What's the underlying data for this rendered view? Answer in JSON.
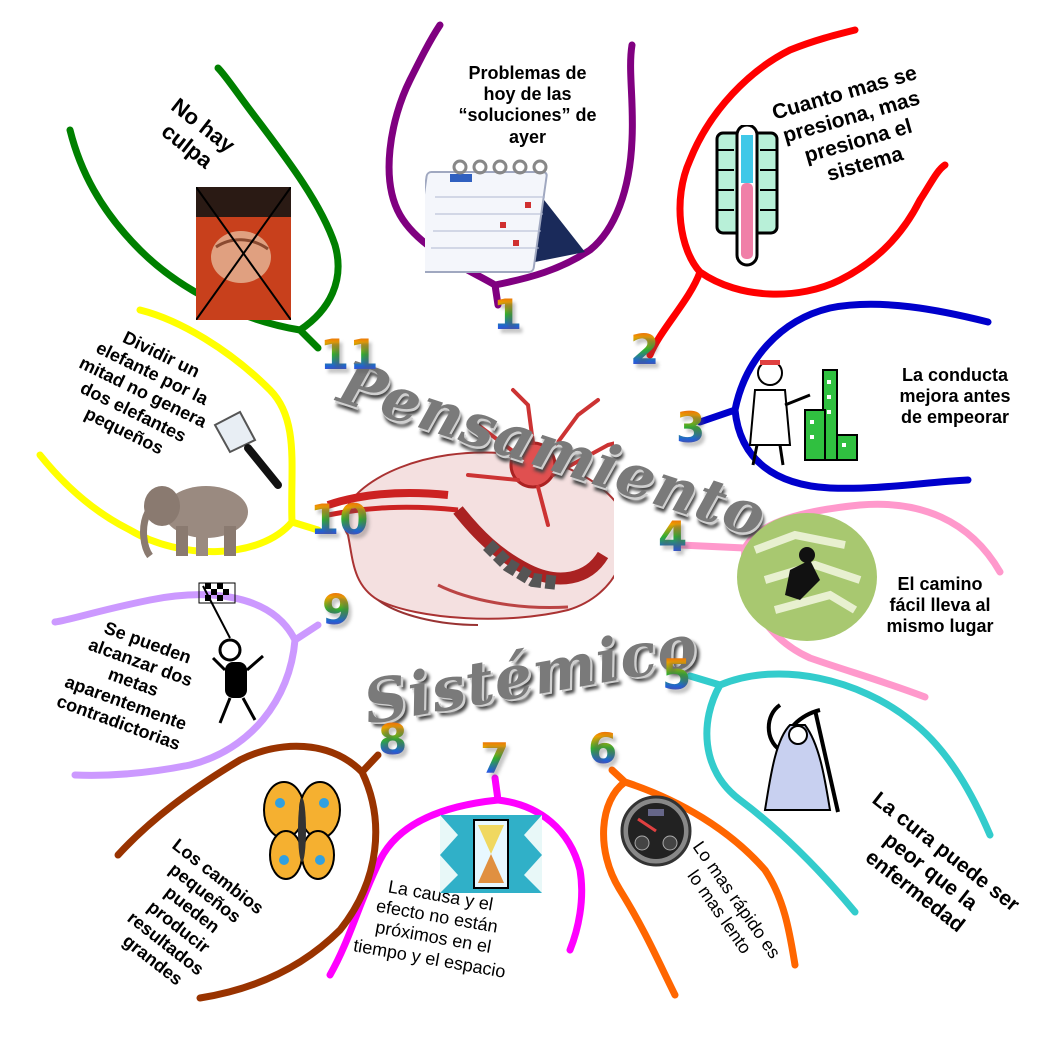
{
  "title": {
    "word1": "Pensamiento",
    "word2": "Sistémico"
  },
  "branches": [
    {
      "number": "1",
      "text": "Problemas de\nhoy de las\n“soluciones” de\nayer",
      "color": "#800080",
      "icon": "calendar-icon"
    },
    {
      "number": "2",
      "text": "Cuanto mas se\npresiona, mas\npresiona el\nsistema",
      "color": "#ff0000",
      "icon": "thermometer-icon"
    },
    {
      "number": "3",
      "text": "La conducta\nmejora antes\nde empeorar",
      "color": "#0000cc",
      "icon": "doctor-building-icon"
    },
    {
      "number": "4",
      "text": "El camino\nfácil lleva al\nmismo lugar",
      "color": "#ff99cc",
      "icon": "maze-icon"
    },
    {
      "number": "5",
      "text": "La cura puede ser\npeor que la\nenfermedad",
      "color": "#33cccc",
      "icon": "grim-reaper-icon"
    },
    {
      "number": "6",
      "text": "Lo mas rápido es\nlo mas lento",
      "color": "#ff6600",
      "icon": "speedometer-icon"
    },
    {
      "number": "7",
      "text": "La causa y el\nefecto no están\npróximos en el\ntiempo y el espacio",
      "color": "#ff00ff",
      "icon": "hourglass-icon"
    },
    {
      "number": "8",
      "text": "Los cambios\npequeños\npueden\nproducir\nresultados\ngrandes",
      "color": "#993300",
      "icon": "butterfly-icon"
    },
    {
      "number": "9",
      "text": "Se pueden\nalcanzar dos\nmetas\naparentemente\ncontradictorias",
      "color": "#cc99ff",
      "icon": "runner-flag-icon"
    },
    {
      "number": "10",
      "text": "Dividir un\nelefante por la\nmitad no genera\ndos elefantes\npequeños",
      "color": "#ffff00",
      "icon": "elephant-icon"
    },
    {
      "number": "11",
      "text": "No hay\nculpa",
      "color": "#008000",
      "icon": "crossed-out-fist-icon"
    }
  ]
}
